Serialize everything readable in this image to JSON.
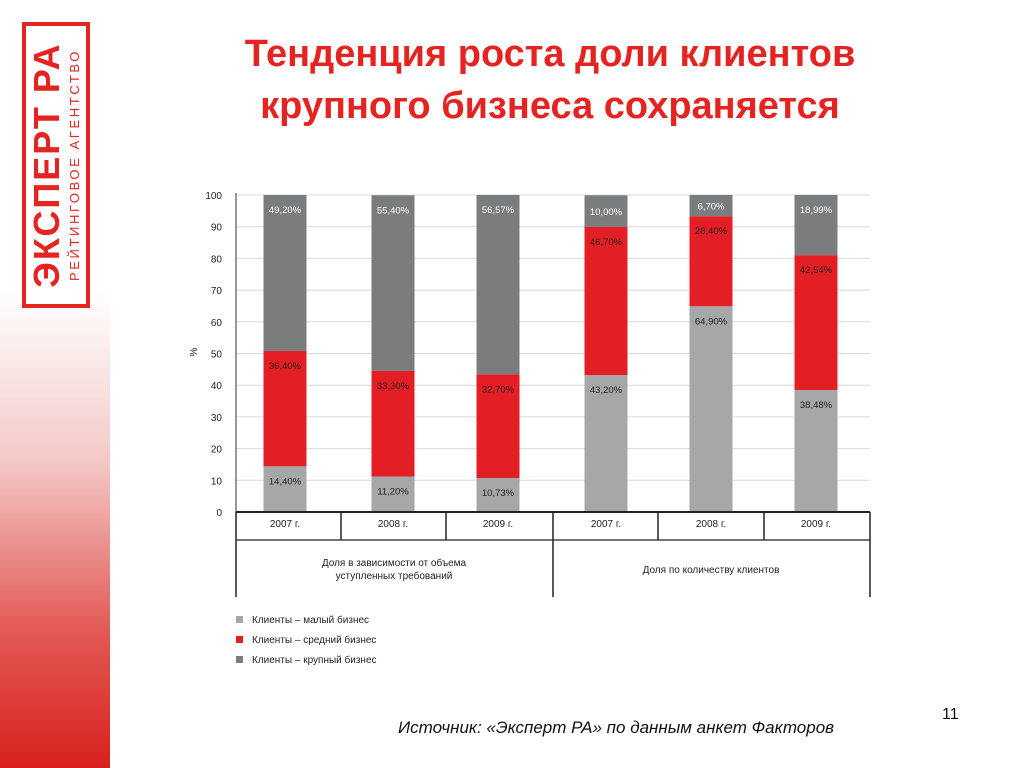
{
  "logo": {
    "main": "ЭКСПЕРТ РА",
    "sub": "РЕЙТИНГОВОЕ АГЕНТСТВО"
  },
  "title": {
    "line1": "Тенденция роста доли клиентов",
    "line2": "крупного бизнеса сохраняется"
  },
  "source": "Источник: «Эксперт РА» по данным анкет Факторов",
  "slide_number": "11",
  "colors": {
    "small": "#a6a7a9",
    "medium": "#e31e24",
    "large": "#7b7c7e",
    "accent": "#e52421"
  },
  "chart_data": {
    "type": "bar",
    "stacked": true,
    "ylabel": "%",
    "ylim": [
      0,
      100
    ],
    "yticks": [
      "0",
      "10",
      "20",
      "30",
      "40",
      "50",
      "60",
      "70",
      "80",
      "90",
      "100"
    ],
    "grid": true,
    "categories": [
      "2007 г.",
      "2008 г.",
      "2009 г.",
      "2007 г.",
      "2008 г.",
      "2009 г."
    ],
    "groups": [
      {
        "label": "Доля в зависимости от объема\nуступленных требований",
        "span": [
          0,
          2
        ]
      },
      {
        "label": "Доля по количеству клиентов",
        "span": [
          3,
          5
        ]
      }
    ],
    "series": [
      {
        "name": "Клиенты – малый бизнес",
        "color": "#a6a7a9",
        "values": [
          14.4,
          11.2,
          10.73,
          43.2,
          64.9,
          38.48
        ],
        "labels": [
          "14,40%",
          "11,20%",
          "10,73%",
          "43,20%",
          "64,90%",
          "38,48%"
        ]
      },
      {
        "name": "Клиенты – средний бизнес",
        "color": "#e31e24",
        "values": [
          36.4,
          33.3,
          32.7,
          46.7,
          28.4,
          42.54
        ],
        "labels": [
          "36,40%",
          "33,30%",
          "32,70%",
          "46,70%",
          "28,40%",
          "42,54%"
        ]
      },
      {
        "name": "Клиенты – крупный бизнес",
        "color": "#7b7c7e",
        "values": [
          49.2,
          55.4,
          56.57,
          10.0,
          6.7,
          18.99
        ],
        "labels": [
          "49,20%",
          "55,40%",
          "56,57%",
          "10,00%",
          "6,70%",
          "18,99%"
        ]
      }
    ],
    "legend_position": "bottom-left"
  }
}
